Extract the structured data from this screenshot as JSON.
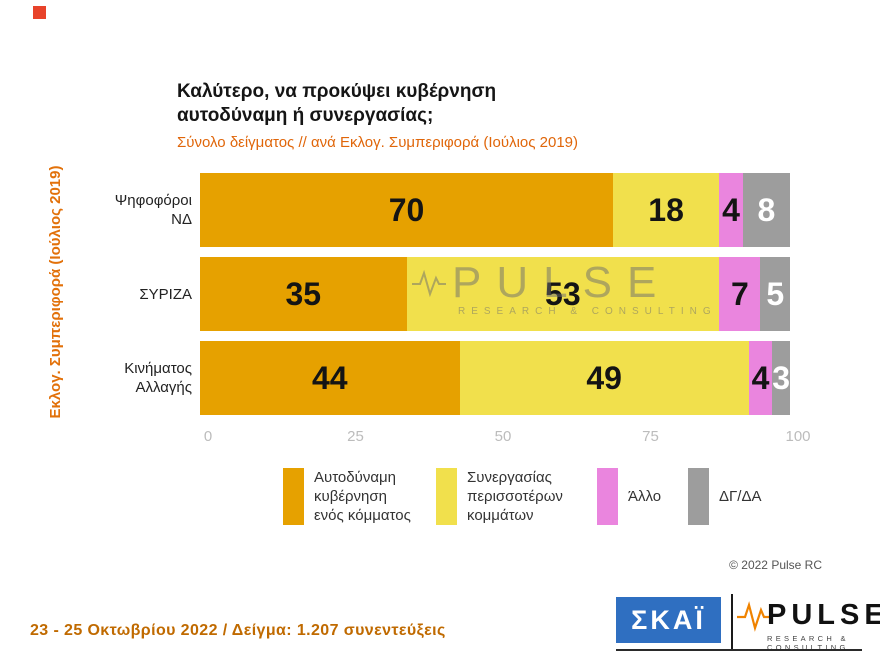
{
  "slide": {
    "marker_color": "#e8432a",
    "title_line1": "Καλύτερο, να προκύψει κυβέρνηση",
    "title_line2": "αυτοδύναμη ή συνεργασίας;",
    "subtitle": "Σύνολο δείγματος // ανά Εκλογ. Συμπεριφορά (Ιούλιος 2019)",
    "side_label": "Εκλογ. Συμπεριφορά (Ιούλιος 2019)",
    "copyright": "© 2022 Pulse RC",
    "footer_note": "23 - 25  Οκτωβρίου  2022  /  Δείγμα:  1.207 συνεντεύξεις"
  },
  "watermark": {
    "word": "PULSE",
    "sub": "RESEARCH & CONSULTING"
  },
  "logos": {
    "skai": "ΣΚΑΪ",
    "skai_bg": "#2f6fc1",
    "pulse_word": "PULSE",
    "pulse_sub": "RESEARCH & CONSULTING",
    "pulse_accent": "#f08300"
  },
  "chart_data": {
    "type": "bar",
    "orientation": "horizontal",
    "stacked": true,
    "title": "Καλύτερο, να προκύψει κυβέρνηση αυτοδύναμη ή συνεργασίας;",
    "subtitle": "Σύνολο δείγματος // ανά Εκλογ. Συμπεριφορά (Ιούλιος 2019)",
    "group_axis_label": "Εκλογ. Συμπεριφορά (Ιούλιος 2019)",
    "categories": [
      "Ψηφοφόροι ΝΔ",
      "ΣΥΡΙΖΑ",
      "Κινήματος Αλλαγής"
    ],
    "series": [
      {
        "name": "Αυτοδύναμη κυβέρνηση ενός κόμματος",
        "color": "#e6a100",
        "label_color": "#141414",
        "values": [
          70,
          35,
          44
        ]
      },
      {
        "name": "Συνεργασίας περισσοτέρων κομμάτων",
        "color": "#f1e04c",
        "label_color": "#141414",
        "values": [
          18,
          53,
          49
        ]
      },
      {
        "name": "Άλλο",
        "color": "#ea85de",
        "label_color": "#141414",
        "values": [
          4,
          7,
          4
        ]
      },
      {
        "name": "ΔΓ/ΔΑ",
        "color": "#9d9d9d",
        "label_color": "#ffffff",
        "values": [
          8,
          5,
          3
        ]
      }
    ],
    "xlim": [
      0,
      100
    ],
    "x_ticks": [
      0,
      25,
      50,
      75,
      100
    ],
    "grid": false,
    "legend_position": "bottom",
    "values_unit": "%"
  }
}
